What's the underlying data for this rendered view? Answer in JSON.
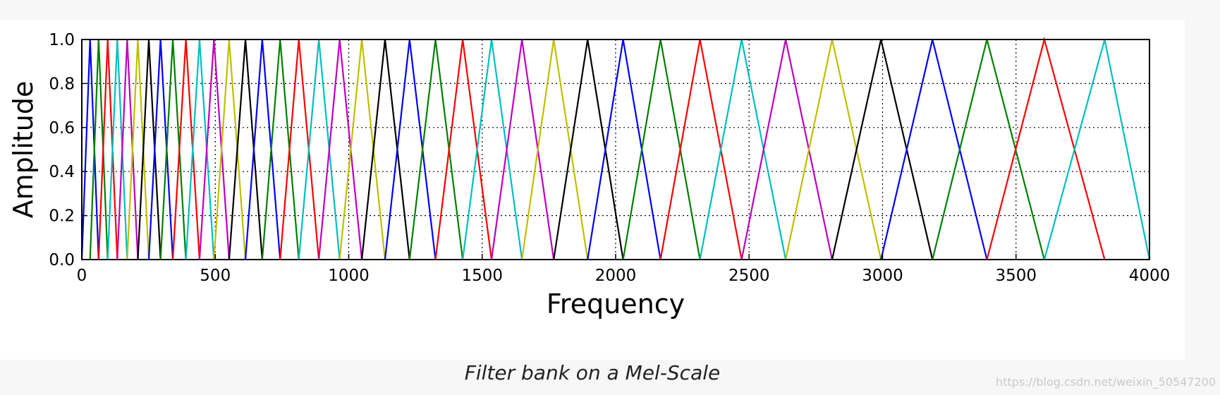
{
  "caption": "Filter bank on a Mel-Scale",
  "watermark": "https://blog.csdn.net/weixin_50547200",
  "chart_data": {
    "type": "line",
    "title": "",
    "xlabel": "Frequency",
    "ylabel": "Amplitude",
    "xlim": [
      0,
      4000
    ],
    "ylim": [
      0,
      1.0
    ],
    "xticks": [
      0,
      500,
      1000,
      1500,
      2000,
      2500,
      3000,
      3500,
      4000
    ],
    "yticks": [
      0.0,
      0.2,
      0.4,
      0.6,
      0.8,
      1.0
    ],
    "xtick_labels": [
      "0",
      "500",
      "1000",
      "1500",
      "2000",
      "2500",
      "3000",
      "3500",
      "4000"
    ],
    "ytick_labels": [
      "0.0",
      "0.2",
      "0.4",
      "0.6",
      "0.8",
      "1.0"
    ],
    "grid": true,
    "grid_style": "dotted",
    "filter_shape": "triangular",
    "color_cycle": [
      "#0000ff",
      "#008000",
      "#ff0000",
      "#00bfbf",
      "#bf00bf",
      "#bfbf00",
      "#000000"
    ],
    "filter_edges": [
      0,
      31,
      63,
      97,
      133,
      170,
      210,
      251,
      295,
      341,
      390,
      441,
      495,
      552,
      613,
      676,
      743,
      813,
      888,
      966,
      1049,
      1136,
      1228,
      1325,
      1427,
      1535,
      1649,
      1768,
      1895,
      2028,
      2168,
      2316,
      2472,
      2637,
      2811,
      2994,
      3187,
      3391,
      3606,
      3832,
      4000
    ]
  }
}
